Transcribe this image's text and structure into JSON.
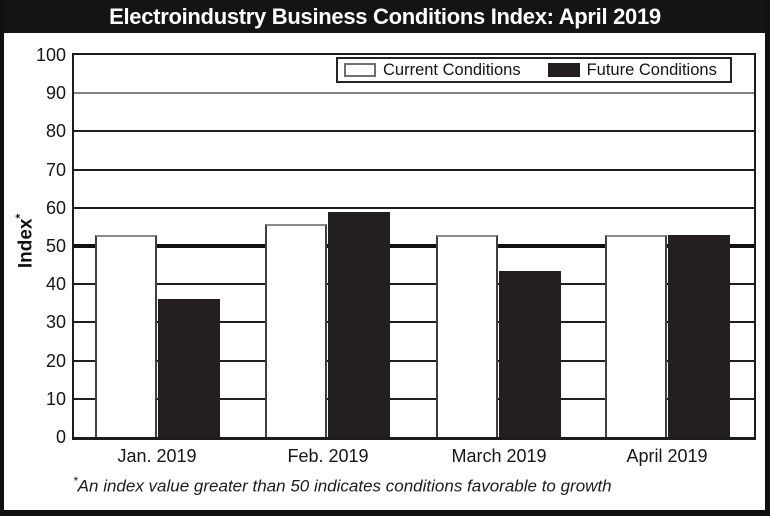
{
  "title": "Electroindustry Business Conditions Index: April 2019",
  "legend": {
    "items": [
      {
        "label": "Current Conditions",
        "swatch_color": "#ffffff"
      },
      {
        "label": "Future Conditions",
        "swatch_color": "#231f20"
      }
    ]
  },
  "y_axis": {
    "title": "Index",
    "title_superscript": "*",
    "ticks": [
      100,
      90,
      80,
      70,
      60,
      50,
      40,
      30,
      20,
      10,
      0
    ]
  },
  "footnote": {
    "marker": "*",
    "text": "An index value greater than 50 indicates conditions favorable to growth"
  },
  "colors": {
    "title_bar": "#161413",
    "bar_future": "#231f20",
    "bar_current": "#ffffff",
    "gridline": "#1f1f1f",
    "gridline_90": "#828282"
  },
  "chart_data": {
    "type": "bar",
    "title": "Electroindustry Business Conditions Index: April 2019",
    "categories": [
      "Jan. 2019",
      "Feb. 2019",
      "March 2019",
      "April 2019"
    ],
    "series": [
      {
        "name": "Current Conditions",
        "fill": "#ffffff",
        "values": [
          53,
          55.7,
          53,
          53
        ]
      },
      {
        "name": "Future Conditions",
        "fill": "#231f20",
        "values": [
          36,
          58.8,
          43.5,
          53
        ]
      }
    ],
    "xlabel": "",
    "ylabel": "Index*",
    "ylim": [
      0,
      100
    ],
    "ytick_interval": 10,
    "reference_line": 50,
    "grid": true,
    "legend_position": "top-right"
  }
}
